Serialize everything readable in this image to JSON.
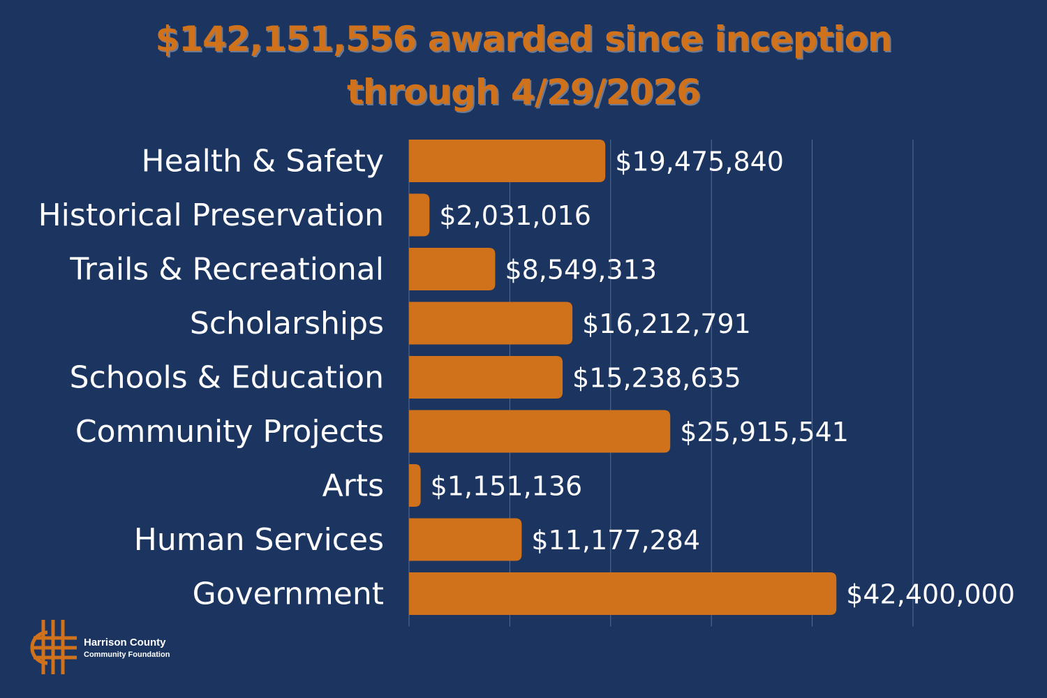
{
  "title": {
    "line1": "$142,151,556 awarded since inception",
    "line2": "through 4/29/2026"
  },
  "colors": {
    "background": "#1b3560",
    "bar": "#d0711c",
    "title": "#d0711c",
    "text": "#ffffff",
    "grid": "#5a6f93"
  },
  "logo": {
    "icon": "hccf-weave-logo-icon",
    "line1": "Harrison County",
    "line2": "Community Foundation"
  },
  "chart_data": {
    "type": "bar",
    "orientation": "horizontal",
    "categories": [
      "Health & Safety",
      "Historical Preservation",
      "Trails & Recreational",
      "Scholarships",
      "Schools & Education",
      "Community Projects",
      "Arts",
      "Human Services",
      "Government"
    ],
    "values": [
      19475840,
      2031016,
      8549313,
      16212791,
      15238635,
      25915541,
      1151136,
      11177284,
      42400000
    ],
    "value_labels": [
      "$19,475,840",
      "$2,031,016",
      "$8,549,313",
      "$16,212,791",
      "$15,238,635",
      "$25,915,541",
      "$1,151,136",
      "$11,177,284",
      "$42,400,000"
    ],
    "xlim": [
      0,
      50000000
    ],
    "grid": true,
    "legend": "none"
  }
}
